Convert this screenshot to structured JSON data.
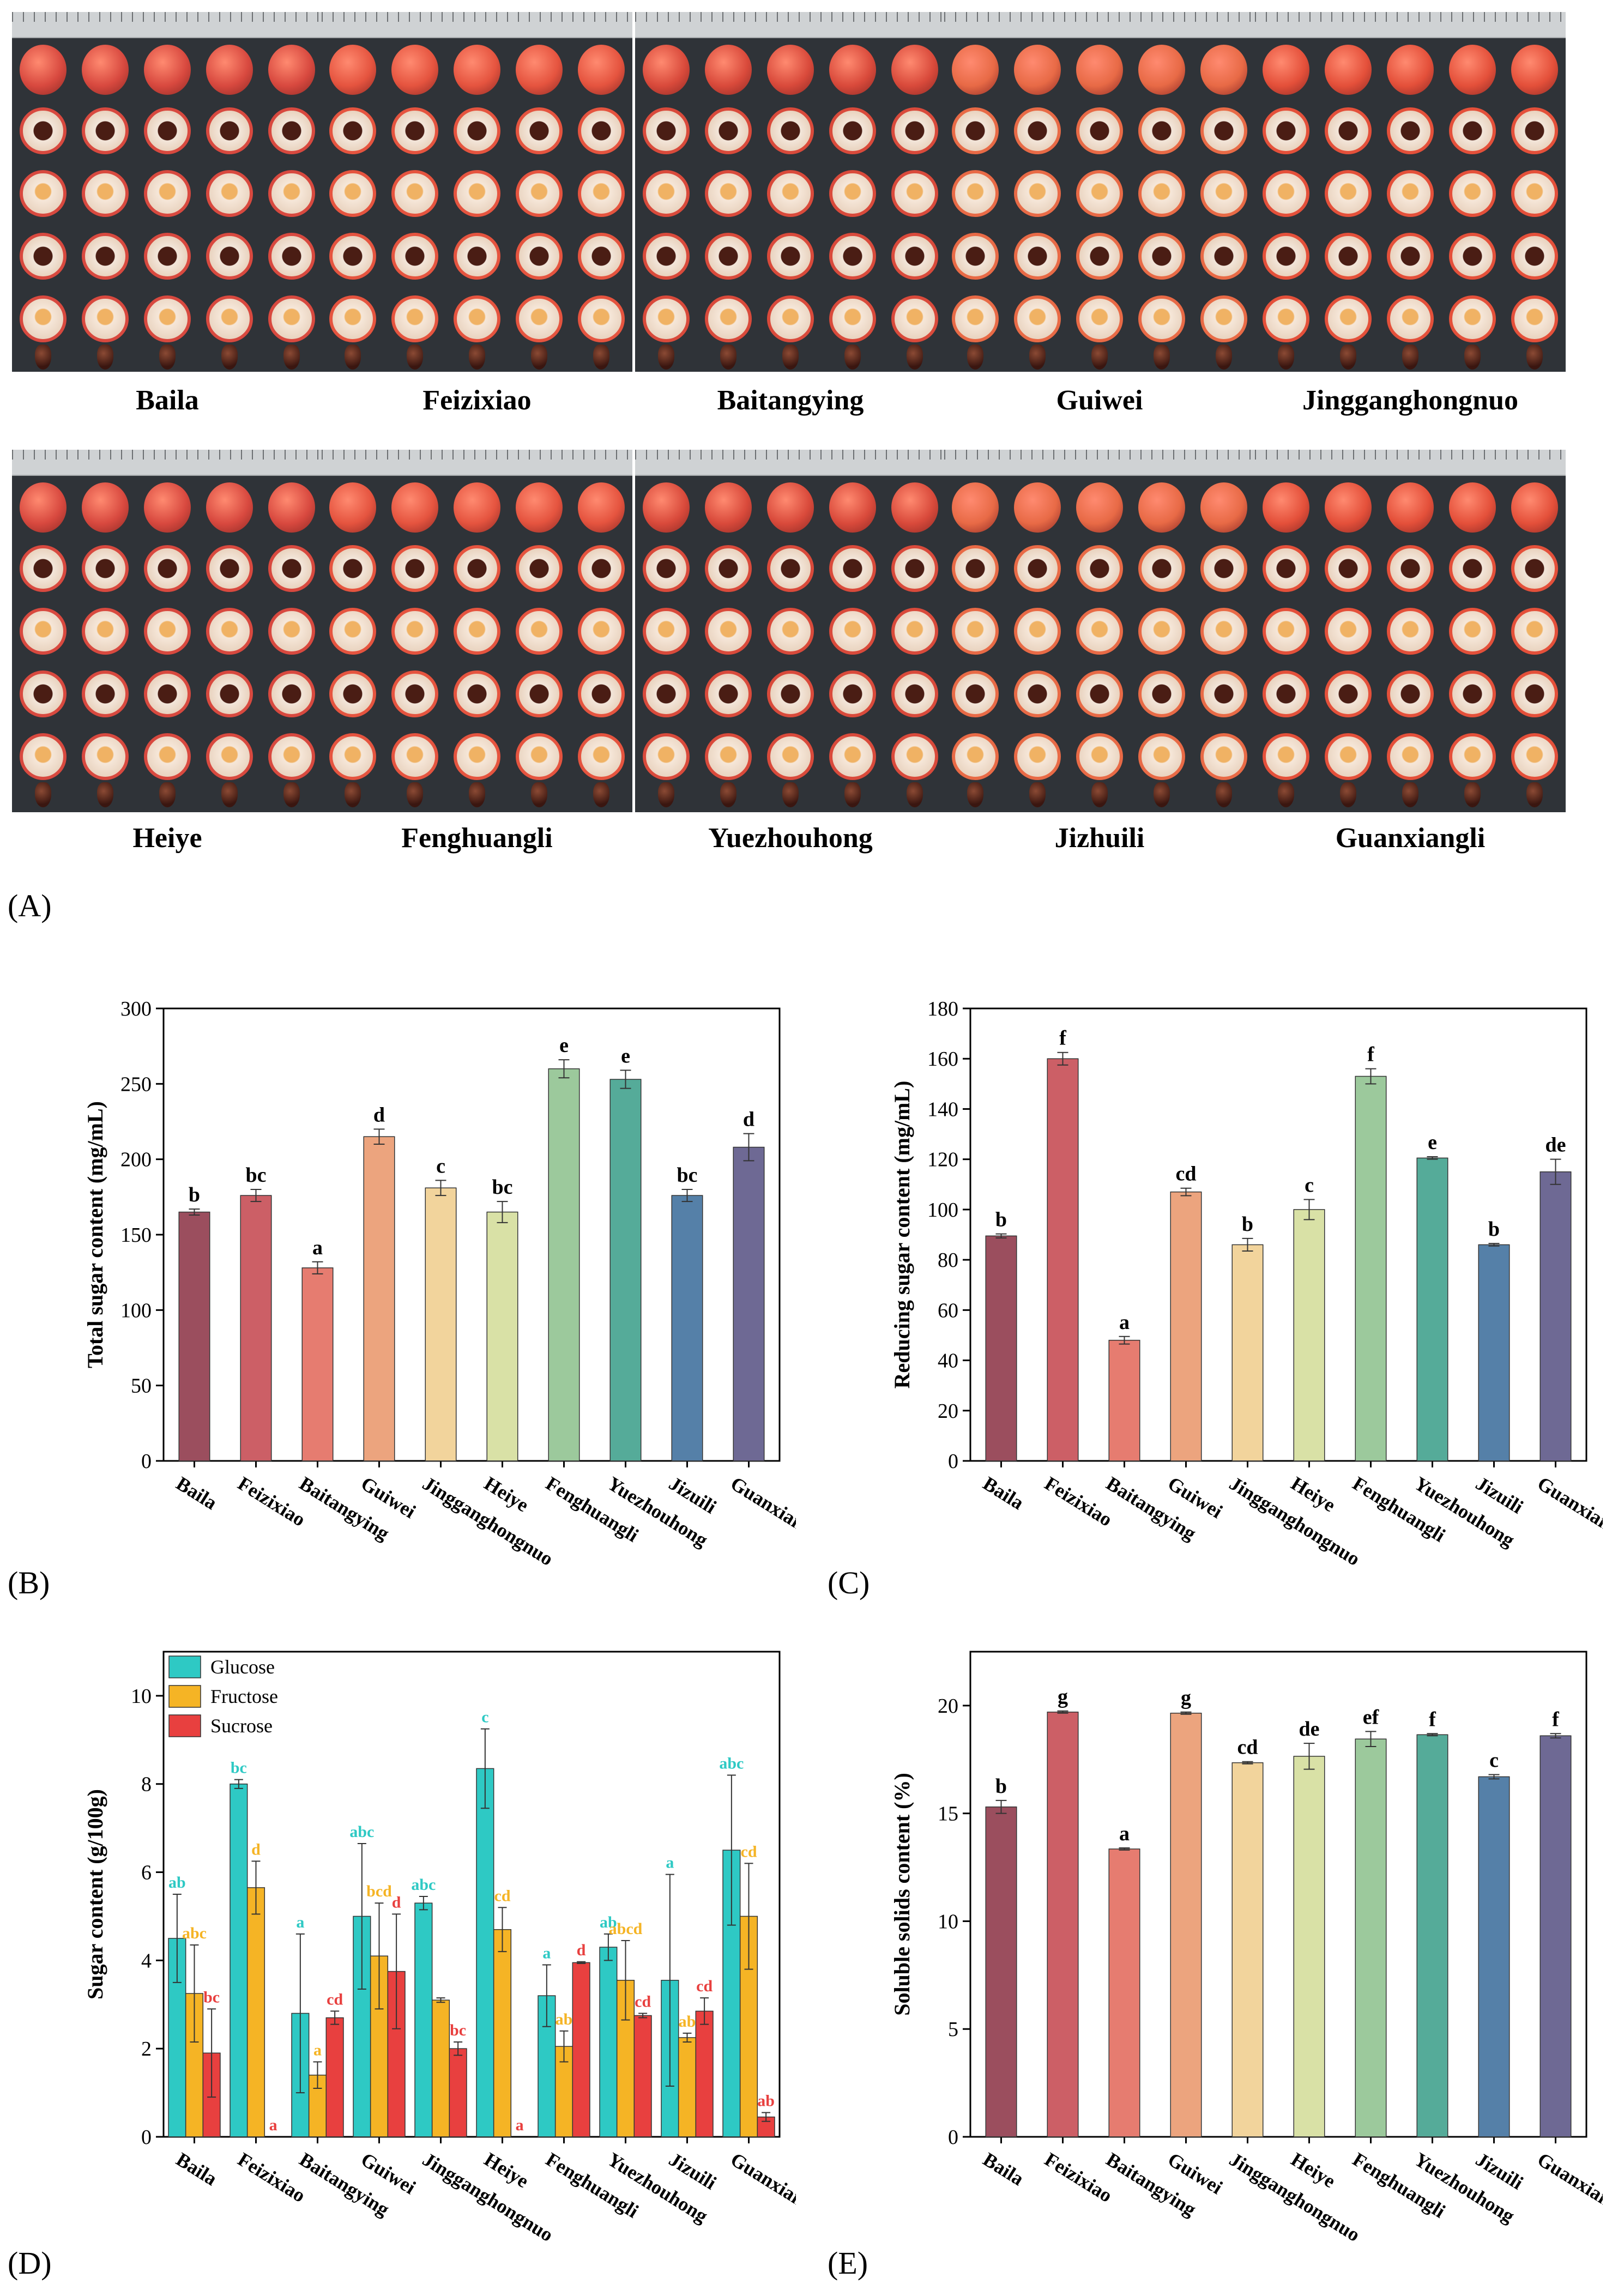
{
  "photos": {
    "panel_label": "(A)",
    "varieties_row1": [
      "Baila",
      "Feizixiao",
      "Baitangying",
      "Guiwei",
      "Jingganghongnuo"
    ],
    "varieties_row2": [
      "Heiye",
      "Fenghuangli",
      "Yuezhouhong",
      "Jizhuili",
      "Guanxiangli"
    ]
  },
  "colors": {
    "bars": [
      "#9b4e5e",
      "#cc5f66",
      "#e67c70",
      "#eca47e",
      "#f2d49c",
      "#d9e1a6",
      "#9cc99c",
      "#55ab99",
      "#5580a8",
      "#6e6994"
    ],
    "glucose": "#2ec9c4",
    "fructose": "#f5b425",
    "sucrose": "#e8403f"
  },
  "chart_data": [
    {
      "panel": "(B)",
      "type": "bar",
      "ylabel": "Total sugar content (mg/mL)",
      "ylim": [
        0,
        300
      ],
      "yticks": [
        0,
        50,
        100,
        150,
        200,
        250,
        300
      ],
      "categories": [
        "Baila",
        "Feizixiao",
        "Baitangying",
        "Guiwei",
        "Jingganghongnuo",
        "Heiye",
        "Fenghuangli",
        "Yuezhouhong",
        "Jizuili",
        "Guanxiangli"
      ],
      "values": [
        165,
        176,
        128,
        215,
        181,
        165,
        260,
        253,
        176,
        208
      ],
      "errors": [
        2,
        4,
        4,
        5,
        5,
        7,
        6,
        6,
        4,
        9
      ],
      "letters": [
        "b",
        "bc",
        "a",
        "d",
        "c",
        "bc",
        "e",
        "e",
        "bc",
        "d"
      ]
    },
    {
      "panel": "(C)",
      "type": "bar",
      "ylabel": "Reducing sugar content (mg/mL)",
      "ylim": [
        0,
        180
      ],
      "yticks": [
        0,
        20,
        40,
        60,
        80,
        100,
        120,
        140,
        160,
        180
      ],
      "categories": [
        "Baila",
        "Feizixiao",
        "Baitangying",
        "Guiwei",
        "Jingganghongnuo",
        "Heiye",
        "Fenghuangli",
        "Yuezhouhong",
        "Jizuili",
        "Guanxiangli"
      ],
      "values": [
        89.5,
        160,
        48,
        107,
        86,
        100,
        153,
        120.5,
        86,
        115
      ],
      "errors": [
        0.8,
        2.5,
        1.5,
        1.5,
        2.5,
        4,
        3,
        0.5,
        0.5,
        5
      ],
      "letters": [
        "b",
        "f",
        "a",
        "cd",
        "b",
        "c",
        "f",
        "e",
        "b",
        "de"
      ]
    },
    {
      "panel": "(D)",
      "type": "bar",
      "ylabel": "Sugar content (g/100g)",
      "ylim": [
        0,
        11
      ],
      "yticks": [
        0,
        2,
        4,
        6,
        8,
        10
      ],
      "categories": [
        "Baila",
        "Feizixiao",
        "Baitangying",
        "Guiwei",
        "Jingganghongnuo",
        "Heiye",
        "Fenghuangli",
        "Yuezhouhong",
        "Jizuili",
        "Guanxiangli"
      ],
      "legend": [
        "Glucose",
        "Fructose",
        "Sucrose"
      ],
      "series": [
        {
          "name": "Glucose",
          "values": [
            4.5,
            8.0,
            2.8,
            5.0,
            5.3,
            8.35,
            3.2,
            4.3,
            3.55,
            6.5
          ],
          "errors": [
            1.0,
            0.1,
            1.8,
            1.65,
            0.15,
            0.9,
            0.7,
            0.3,
            2.4,
            1.7
          ],
          "letters": [
            "ab",
            "bc",
            "a",
            "abc",
            "abc",
            "c",
            "a",
            "ab",
            "a",
            "abc"
          ]
        },
        {
          "name": "Fructose",
          "values": [
            3.25,
            5.65,
            1.4,
            4.1,
            3.1,
            4.7,
            2.05,
            3.55,
            2.25,
            5.0
          ],
          "errors": [
            1.1,
            0.6,
            0.3,
            1.2,
            0.05,
            0.5,
            0.35,
            0.9,
            0.1,
            1.2
          ],
          "letters": [
            "abc",
            "d",
            "a",
            "bcd",
            "",
            "cd",
            "ab",
            "abcd",
            "ab",
            "cd"
          ]
        },
        {
          "name": "Sucrose",
          "values": [
            1.9,
            0.0,
            2.7,
            3.75,
            2.0,
            0.0,
            3.95,
            2.75,
            2.85,
            0.45
          ],
          "errors": [
            1.0,
            0.0,
            0.15,
            1.3,
            0.15,
            0.0,
            0.02,
            0.05,
            0.3,
            0.1
          ],
          "letters": [
            "bc",
            "a",
            "cd",
            "d",
            "bc",
            "a",
            "d",
            "cd",
            "cd",
            "ab"
          ]
        }
      ]
    },
    {
      "panel": "(E)",
      "type": "bar",
      "ylabel": "Soluble solids content (%)",
      "ylim": [
        0,
        22.5
      ],
      "yticks": [
        0,
        5,
        10,
        15,
        20
      ],
      "categories": [
        "Baila",
        "Feizixiao",
        "Baitangying",
        "Guiwei",
        "Jingganghongnuo",
        "Heiye",
        "Fenghuangli",
        "Yuezhouhong",
        "Jizuili",
        "Guanxiangli"
      ],
      "values": [
        15.3,
        19.7,
        13.35,
        19.65,
        17.35,
        17.65,
        18.45,
        18.65,
        16.7,
        18.6
      ],
      "errors": [
        0.3,
        0.05,
        0.05,
        0.05,
        0.05,
        0.6,
        0.35,
        0.05,
        0.1,
        0.1
      ],
      "letters": [
        "b",
        "g",
        "a",
        "g",
        "cd",
        "de",
        "ef",
        "f",
        "c",
        "f"
      ]
    }
  ]
}
